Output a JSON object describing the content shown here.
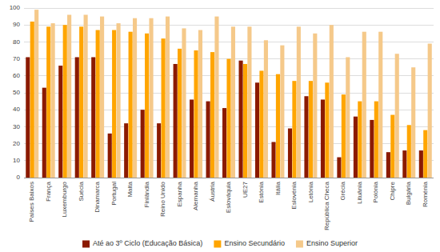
{
  "chart_data": {
    "type": "bar",
    "categories": [
      "Países Baixos",
      "França",
      "Luxemburgo",
      "Suécia",
      "Dinamarca",
      "Portugal",
      "Malta",
      "Finlândia",
      "Reino Unido",
      "Espanha",
      "Alemanha",
      "Áustria",
      "Eslováquia",
      "UE27",
      "Estónia",
      "Itália",
      "Eslovénia",
      "Letónia",
      "República Checa",
      "Grécia",
      "Lituânia",
      "Polónia",
      "Chipre",
      "Bulgária",
      "Roménia"
    ],
    "series": [
      {
        "name": "Até ao 3º Ciclo (Educação Básica)",
        "color": "#8B1A00",
        "values": [
          71,
          53,
          66,
          71,
          71,
          26,
          32,
          40,
          32,
          67,
          46,
          45,
          41,
          69,
          56,
          21,
          29,
          48,
          46,
          12,
          36,
          34,
          15,
          16,
          16
        ]
      },
      {
        "name": "Ensino Secundário",
        "color": "#FFA500",
        "values": [
          92,
          89,
          90,
          89,
          87,
          87,
          86,
          85,
          82,
          76,
          75,
          74,
          70,
          67,
          63,
          61,
          57,
          57,
          56,
          49,
          45,
          45,
          37,
          31,
          28
        ]
      },
      {
        "name": "Ensino Superior",
        "color": "#F5C98A",
        "values": [
          99,
          91,
          96,
          96,
          95,
          91,
          94,
          94,
          95,
          88,
          87,
          95,
          89,
          89,
          81,
          78,
          89,
          85,
          90,
          71,
          86,
          86,
          73,
          65,
          79
        ]
      }
    ],
    "ylim": [
      0,
      100
    ],
    "yticks": [
      0,
      10,
      20,
      30,
      40,
      50,
      60,
      70,
      80,
      90,
      100
    ],
    "grid": true,
    "legend": "bottom"
  }
}
